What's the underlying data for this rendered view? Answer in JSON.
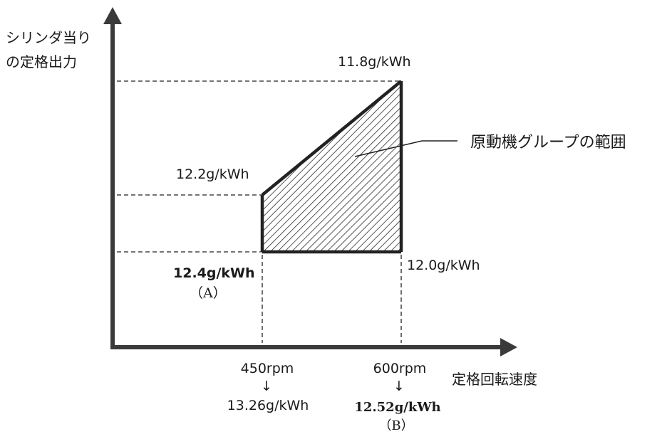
{
  "axes": {
    "y_label_line1": "シリンダ当り",
    "y_label_line2": "の定格出力",
    "x_label": "定格回転速度"
  },
  "corners": {
    "top_right": "11.8g/kWh",
    "top_left": "12.2g/kWh",
    "bottom_left": "12.4g/kWh",
    "bottom_left_tag": "（A）",
    "bottom_right": "12.0g/kWh"
  },
  "callout": {
    "label": "原動機グループの範囲"
  },
  "x_marks": [
    {
      "speed": "450rpm",
      "arrow": "↓",
      "value": "13.26g/kWh"
    },
    {
      "speed": "600rpm",
      "arrow": "↓",
      "value": "12.52g/kWh",
      "tag": "（B）"
    }
  ]
}
